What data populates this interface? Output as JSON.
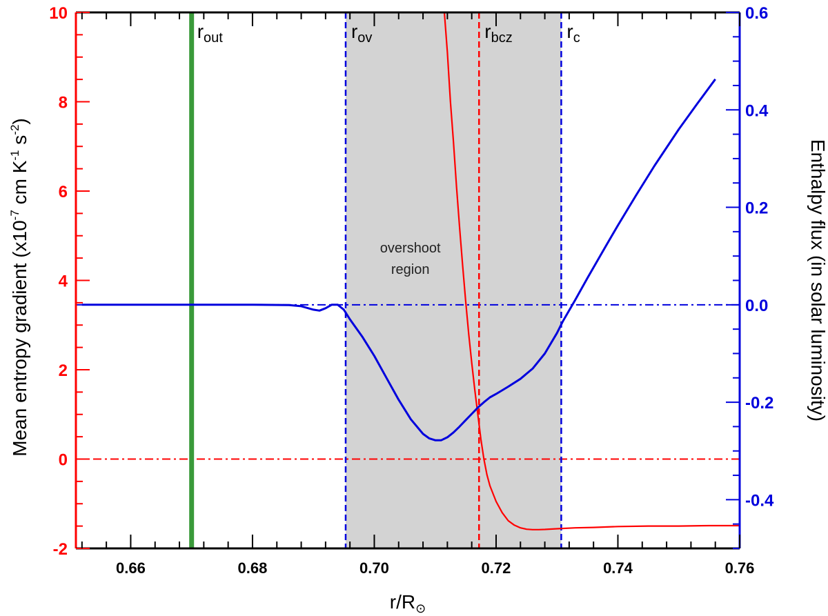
{
  "chart_data": {
    "type": "line",
    "x": {
      "label_main": "r/R",
      "label_sub": "⊙",
      "range": [
        0.651,
        0.76
      ],
      "ticks": [
        "0.66",
        "0.68",
        "0.70",
        "0.72",
        "0.74",
        "0.76"
      ],
      "tick_values": [
        0.66,
        0.68,
        0.7,
        0.72,
        0.74,
        0.76
      ]
    },
    "y_left": {
      "label_parts": [
        "Mean entropy gradient (x10",
        "-7",
        " cm K",
        "-1",
        " s",
        "-2",
        ")"
      ],
      "range": [
        -2,
        10
      ],
      "ticks": [
        "-2",
        "0",
        "2",
        "4",
        "6",
        "8",
        "10"
      ],
      "tick_values": [
        -2,
        0,
        2,
        4,
        6,
        8,
        10
      ],
      "color": "#ff0000"
    },
    "y_right": {
      "label": "Enthalpy flux (in solar luminosity)",
      "range": [
        -0.5,
        0.6
      ],
      "ticks": [
        "-0.4",
        "-0.2",
        "0.0",
        "0.2",
        "0.4",
        "0.6"
      ],
      "tick_values": [
        -0.4,
        -0.2,
        0.0,
        0.2,
        0.4,
        0.6
      ],
      "color": "#0000dd"
    },
    "shaded_region": {
      "x0": 0.6953,
      "x1": 0.7307,
      "label_line1": "overshoot",
      "label_line2": "region",
      "color": "#d3d3d3"
    },
    "markers": [
      {
        "name": "r_out",
        "main": "r",
        "sub": "out",
        "x": 0.67,
        "style": "solid",
        "color": "#3a9a3a"
      },
      {
        "name": "r_ov",
        "main": "r",
        "sub": "ov",
        "x": 0.6953,
        "style": "dashed",
        "color": "#0000dd"
      },
      {
        "name": "r_bcz",
        "main": "r",
        "sub": "bcz",
        "x": 0.7172,
        "style": "dashed",
        "color": "#ff0000"
      },
      {
        "name": "r_c",
        "main": "r",
        "sub": "c",
        "x": 0.7307,
        "style": "dashed",
        "color": "#0000dd"
      }
    ],
    "reference_lines": [
      {
        "name": "zero-entropy-gradient",
        "axis": "left",
        "value": 0,
        "color": "#ff0000"
      },
      {
        "name": "zero-enthalpy-flux",
        "axis": "right",
        "value": 0,
        "color": "#0000dd"
      }
    ],
    "series": [
      {
        "name": "Mean entropy gradient",
        "axis": "left",
        "color": "#ff0000",
        "x": [
          0.7115,
          0.712,
          0.7125,
          0.713,
          0.7135,
          0.714,
          0.7145,
          0.715,
          0.7155,
          0.716,
          0.7165,
          0.717,
          0.7175,
          0.718,
          0.7185,
          0.719,
          0.72,
          0.721,
          0.722,
          0.723,
          0.724,
          0.725,
          0.726,
          0.727,
          0.728,
          0.73,
          0.733,
          0.736,
          0.74,
          0.745,
          0.75,
          0.755,
          0.76
        ],
        "y": [
          10.0,
          9.1,
          8.0,
          7.1,
          6.1,
          5.2,
          4.35,
          3.55,
          2.8,
          2.15,
          1.55,
          1.0,
          0.45,
          0.0,
          -0.35,
          -0.6,
          -0.95,
          -1.2,
          -1.38,
          -1.48,
          -1.54,
          -1.57,
          -1.58,
          -1.58,
          -1.575,
          -1.56,
          -1.54,
          -1.53,
          -1.51,
          -1.5,
          -1.5,
          -1.49,
          -1.49
        ]
      },
      {
        "name": "Enthalpy flux",
        "axis": "right",
        "color": "#0000dd",
        "x": [
          0.652,
          0.66,
          0.67,
          0.68,
          0.686,
          0.688,
          0.69,
          0.691,
          0.692,
          0.693,
          0.694,
          0.695,
          0.696,
          0.698,
          0.7,
          0.702,
          0.704,
          0.706,
          0.708,
          0.709,
          0.71,
          0.711,
          0.712,
          0.713,
          0.714,
          0.715,
          0.716,
          0.717,
          0.718,
          0.719,
          0.72,
          0.722,
          0.724,
          0.726,
          0.728,
          0.73,
          0.731,
          0.733,
          0.735,
          0.738,
          0.74,
          0.743,
          0.746,
          0.75,
          0.753,
          0.756
        ],
        "y": [
          0.0,
          0.0,
          0.0,
          0.0,
          -0.0005,
          -0.003,
          -0.01,
          -0.012,
          -0.007,
          0.0,
          0.0,
          -0.01,
          -0.03,
          -0.065,
          -0.105,
          -0.15,
          -0.195,
          -0.235,
          -0.265,
          -0.274,
          -0.278,
          -0.278,
          -0.272,
          -0.262,
          -0.25,
          -0.237,
          -0.224,
          -0.211,
          -0.2,
          -0.19,
          -0.183,
          -0.168,
          -0.152,
          -0.131,
          -0.1,
          -0.058,
          -0.033,
          0.01,
          0.055,
          0.12,
          0.163,
          0.225,
          0.285,
          0.36,
          0.412,
          0.463
        ]
      }
    ]
  }
}
